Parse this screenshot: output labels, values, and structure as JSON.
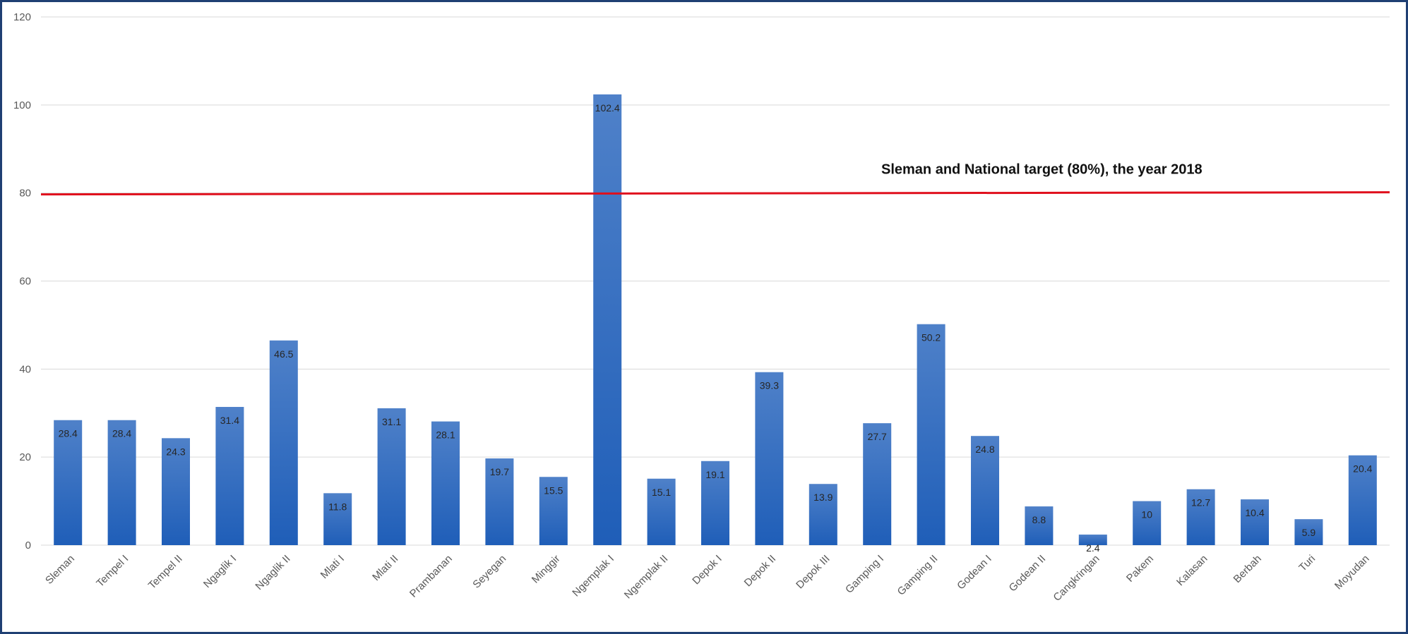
{
  "chart_data": {
    "type": "bar",
    "title": "",
    "xlabel": "",
    "ylabel": "",
    "ylim": [
      0,
      120
    ],
    "yticks": [
      0,
      20,
      40,
      60,
      80,
      100,
      120
    ],
    "grid": true,
    "categories": [
      "Sleman",
      "Tempel I",
      "Tempel II",
      "Ngaglik I",
      "Ngaglik II",
      "Mlati I",
      "Mlati II",
      "Prambanan",
      "Seyegan",
      "Minggir",
      "Ngemplak I",
      "Ngemplak II",
      "Depok I",
      "Depok II",
      "Depok III",
      "Gamping I",
      "Gamping II",
      "Godean I",
      "Godean II",
      "Cangkringan",
      "Pakem",
      "Kalasan",
      "Berbah",
      "Turi",
      "Moyudan"
    ],
    "values": [
      28.4,
      28.4,
      24.3,
      31.4,
      46.5,
      11.8,
      31.1,
      28.1,
      19.7,
      15.5,
      102.4,
      15.1,
      19.1,
      39.3,
      13.9,
      27.7,
      50.2,
      24.8,
      8.8,
      2.4,
      10,
      12.7,
      10.4,
      5.9,
      20.4
    ],
    "data_labels": [
      "28.4",
      "28.4",
      "24.3",
      "31.4",
      "46.5",
      "11.8",
      "31.1",
      "28.1",
      "19.7",
      "15.5",
      "102.4",
      "15.1",
      "19.1",
      "39.3",
      "13.9",
      "27.7",
      "50.2",
      "24.8",
      "8.8",
      "2.4",
      "10",
      "12.7",
      "10.4",
      "5.9",
      "20.4"
    ],
    "reference_line": {
      "value": 80,
      "label": "Sleman and National target (80%), the year 2018",
      "color": "#e0101d"
    },
    "colors": {
      "bar_top": "#4f81c9",
      "bar_bottom": "#1f5eb8",
      "grid": "#d9d9d9",
      "frame": "#1f3f73"
    }
  }
}
